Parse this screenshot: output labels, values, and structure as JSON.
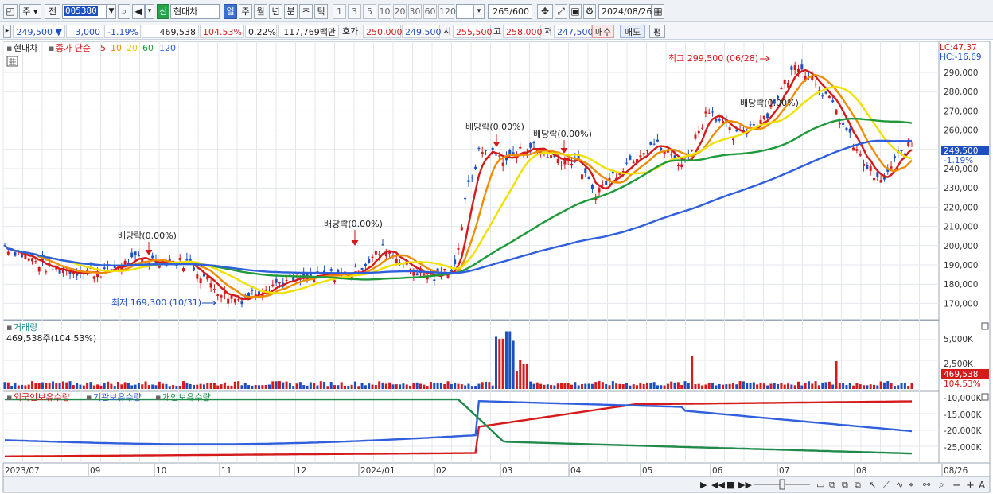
{
  "toolbar": {
    "market_label": "주",
    "prev_label": "전",
    "stock_code": "005380",
    "sin_label": "신",
    "stock_name": "현대차",
    "periods": [
      "일",
      "주",
      "월",
      "년",
      "분",
      "초",
      "틱"
    ],
    "active_period": "일",
    "intervals": [
      "1",
      "3",
      "5",
      "10",
      "20",
      "30",
      "60",
      "120"
    ],
    "bar_count": "265",
    "bar_total": "/600",
    "date": "2024/08/26"
  },
  "quote": {
    "price": "249,500",
    "change": "3,000",
    "change_pct": "-1.19%",
    "volume": "469,538",
    "volume_ratio": "104.53%",
    "turnover": "0.22%",
    "amount": "117,769백만",
    "ask_label": "호가",
    "ask": "250,000",
    "bid": "249,500",
    "open_label": "시",
    "open": "255,500",
    "high_label": "고",
    "high": "258,000",
    "low_label": "저",
    "low": "247,500",
    "buy_label": "매수",
    "sell_label": "매도",
    "eval_label": "평"
  },
  "legend": {
    "name": "현대차",
    "price_label": "종가 단순",
    "ma": [
      {
        "period": "5",
        "color": "#d41a1a"
      },
      {
        "period": "10",
        "color": "#f08c00"
      },
      {
        "period": "20",
        "color": "#f1e100"
      },
      {
        "period": "60",
        "color": "#1f9a3a"
      },
      {
        "period": "120",
        "color": "#2f5fdc"
      }
    ],
    "lc": "LC:47.37",
    "hc": "HC:-16.69"
  },
  "annotations": {
    "high": "최고 299,500 (06/28)",
    "low": "최저 169,300 (10/31)",
    "dividend": "배당락(0.00%)"
  },
  "price_axis": [
    "290,000",
    "280,000",
    "270,000",
    "260,000",
    "250,000",
    "240,000",
    "230,000",
    "220,000",
    "210,000",
    "200,000",
    "190,000",
    "180,000",
    "170,000"
  ],
  "current_label": {
    "price": "249,500",
    "pct": "-1.19%"
  },
  "volume_panel": {
    "title": "거래량",
    "info": "469,538주(104.53%)",
    "axis": [
      "5,000K",
      "2,500K"
    ],
    "current": "469,538",
    "current_pct": "104.53%"
  },
  "holding_panel": {
    "series": [
      "외국인보유수량",
      "기관보유수량",
      "개인보유수량"
    ],
    "colors": [
      "#d41a1a",
      "#2f5fdc",
      "#1f8a4a"
    ],
    "axis": [
      "-10,000K",
      "-15,000K",
      "-20,000K",
      "-25,000K"
    ]
  },
  "date_axis": [
    "2023/07",
    "09",
    "10",
    "11",
    "12",
    "2024/01",
    "02",
    "03",
    "04",
    "05",
    "06",
    "07",
    "08",
    "08/26"
  ],
  "colors": {
    "up": "#d41a1a",
    "down": "#1e4fbf",
    "grid": "#e3e7ec",
    "current_bg": "#1e4fbf"
  }
}
